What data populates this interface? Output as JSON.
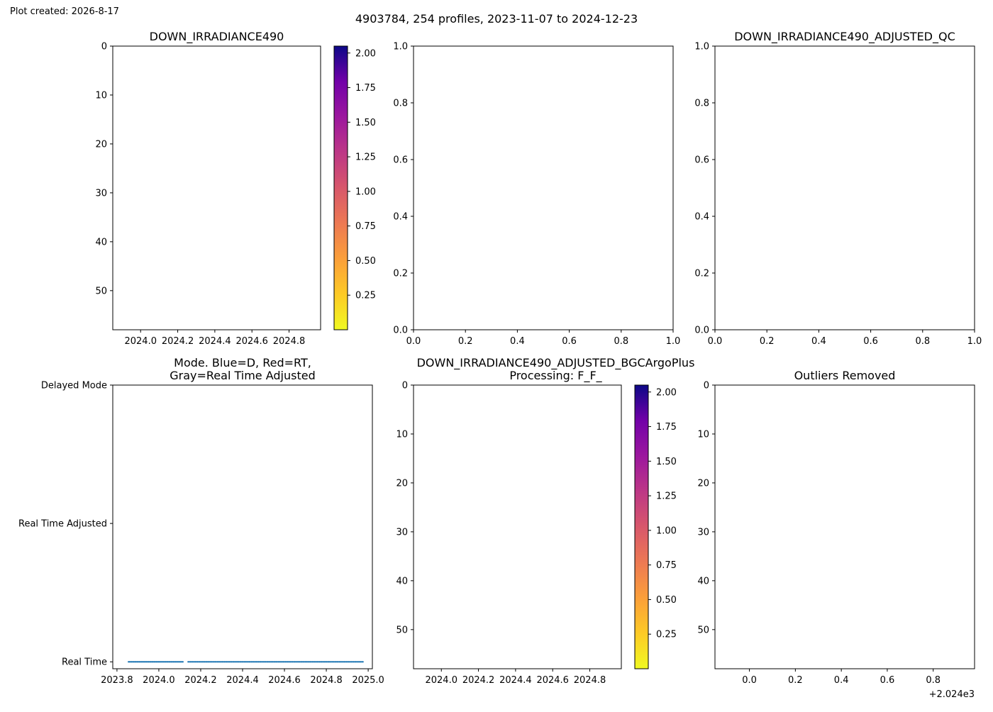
{
  "page": {
    "created_note": "Plot created: 2026-8-17",
    "suptitle": "4903784, 254 profiles, 2023-11-07 to 2024-12-23"
  },
  "chart_data": [
    {
      "id": "p1",
      "type": "heatmap",
      "title": "DOWN_IRRADIANCE490",
      "xlim": [
        2023.85,
        2024.97
      ],
      "xticks": [
        2024.0,
        2024.2,
        2024.4,
        2024.6,
        2024.8
      ],
      "xtick_labels": [
        "2024.0",
        "2024.2",
        "2024.4",
        "2024.6",
        "2024.8"
      ],
      "ylim": [
        58,
        0
      ],
      "yticks": [
        0,
        10,
        20,
        30,
        40,
        50
      ],
      "ytick_labels": [
        "0",
        "10",
        "20",
        "30",
        "40",
        "50"
      ],
      "grid": false,
      "colorbar": {
        "colormap": "plasma_r",
        "range": [
          0.0,
          2.05
        ],
        "ticks": [
          0.25,
          0.5,
          0.75,
          1.0,
          1.25,
          1.5,
          1.75,
          2.0
        ],
        "tick_labels": [
          "0.25",
          "0.50",
          "0.75",
          "1.00",
          "1.25",
          "1.50",
          "1.75",
          "2.00"
        ]
      },
      "values": []
    },
    {
      "id": "p2",
      "type": "scatter",
      "title": "",
      "xlim": [
        0,
        1
      ],
      "xticks": [
        0,
        0.2,
        0.4,
        0.6,
        0.8,
        1.0
      ],
      "xtick_labels": [
        "0.0",
        "0.2",
        "0.4",
        "0.6",
        "0.8",
        "1.0"
      ],
      "ylim": [
        0,
        1
      ],
      "yticks": [
        0,
        0.2,
        0.4,
        0.6,
        0.8,
        1.0
      ],
      "ytick_labels": [
        "0.0",
        "0.2",
        "0.4",
        "0.6",
        "0.8",
        "1.0"
      ],
      "grid": false,
      "values": []
    },
    {
      "id": "p3",
      "type": "scatter",
      "title": "DOWN_IRRADIANCE490_ADJUSTED_QC",
      "xlim": [
        0,
        1
      ],
      "xticks": [
        0,
        0.2,
        0.4,
        0.6,
        0.8,
        1.0
      ],
      "xtick_labels": [
        "0.0",
        "0.2",
        "0.4",
        "0.6",
        "0.8",
        "1.0"
      ],
      "ylim": [
        0,
        1
      ],
      "yticks": [
        0,
        0.2,
        0.4,
        0.6,
        0.8,
        1.0
      ],
      "ytick_labels": [
        "0.0",
        "0.2",
        "0.4",
        "0.6",
        "0.8",
        "1.0"
      ],
      "grid": false,
      "values": []
    },
    {
      "id": "p4",
      "type": "scatter",
      "title_lines": [
        "Mode. Blue=D, Red=RT,",
        "Gray=Real Time Adjusted"
      ],
      "xlim": [
        2023.78,
        2025.02
      ],
      "xticks": [
        2023.8,
        2024.0,
        2024.2,
        2024.4,
        2024.6,
        2024.8,
        2025.0
      ],
      "xtick_labels": [
        "2023.8",
        "2024.0",
        "2024.2",
        "2024.4",
        "2024.6",
        "2024.8",
        "2025.0"
      ],
      "ylim": [
        -0.05,
        2.0
      ],
      "yticks": [
        0,
        1,
        2
      ],
      "ytick_labels": [
        "Real Time",
        "Real Time Adjusted",
        "Delayed Mode"
      ],
      "grid": false,
      "series": [
        {
          "color": "#1f77b4",
          "y": 0,
          "segments": [
            {
              "x_start": 2023.855,
              "x_end": 2024.115,
              "n": 52
            },
            {
              "x_start": 2024.14,
              "x_end": 2024.975,
              "n": 150
            }
          ]
        }
      ]
    },
    {
      "id": "p5",
      "type": "heatmap",
      "title_lines": [
        "DOWN_IRRADIANCE490_ADJUSTED_BGCArgoPlus",
        "Processing: F_F_"
      ],
      "xlim": [
        2023.85,
        2024.97
      ],
      "xticks": [
        2024.0,
        2024.2,
        2024.4,
        2024.6,
        2024.8
      ],
      "xtick_labels": [
        "2024.0",
        "2024.2",
        "2024.4",
        "2024.6",
        "2024.8"
      ],
      "ylim": [
        58,
        0
      ],
      "yticks": [
        0,
        10,
        20,
        30,
        40,
        50
      ],
      "ytick_labels": [
        "0",
        "10",
        "20",
        "30",
        "40",
        "50"
      ],
      "grid": false,
      "colorbar": {
        "colormap": "plasma_r",
        "range": [
          0.0,
          2.05
        ],
        "ticks": [
          0.25,
          0.5,
          0.75,
          1.0,
          1.25,
          1.5,
          1.75,
          2.0
        ],
        "tick_labels": [
          "0.25",
          "0.50",
          "0.75",
          "1.00",
          "1.25",
          "1.50",
          "1.75",
          "2.00"
        ]
      },
      "values": []
    },
    {
      "id": "p6",
      "type": "scatter",
      "title": "Outliers Removed",
      "xlim": [
        -0.15,
        0.98
      ],
      "xticks": [
        0,
        0.2,
        0.4,
        0.6,
        0.8
      ],
      "xtick_labels": [
        "0.0",
        "0.2",
        "0.4",
        "0.6",
        "0.8"
      ],
      "offset_label": "+2.024e3",
      "ylim": [
        58,
        0
      ],
      "yticks": [
        0,
        10,
        20,
        30,
        40,
        50
      ],
      "ytick_labels": [
        "0",
        "10",
        "20",
        "30",
        "40",
        "50"
      ],
      "grid": false,
      "values": []
    }
  ]
}
